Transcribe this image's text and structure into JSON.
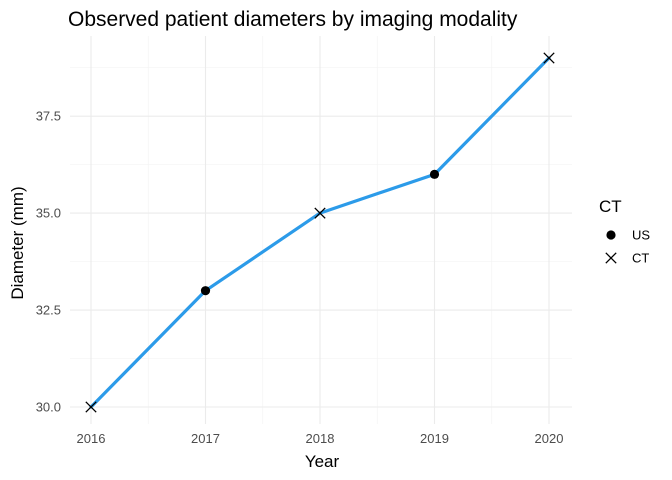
{
  "chart_data": {
    "type": "line",
    "title": "Observed patient diameters by imaging modality",
    "xlabel": "Year",
    "ylabel": "Diameter (mm)",
    "x": [
      2016,
      2017,
      2018,
      2019,
      2020
    ],
    "values": [
      30,
      33,
      35,
      36,
      39
    ],
    "modality": [
      "CT",
      "US",
      "CT",
      "US",
      "CT"
    ],
    "xlim": [
      2016,
      2020
    ],
    "ylim": [
      30,
      39
    ],
    "x_ticks": [
      "2016",
      "2017",
      "2018",
      "2019",
      "2020"
    ],
    "y_ticks": [
      "30.0",
      "32.5",
      "35.0",
      "37.5"
    ],
    "line_color": "#2c9be9",
    "grid": true,
    "legend": {
      "title": "CT",
      "position": "right",
      "entries": [
        {
          "label": "US",
          "shape": "circle"
        },
        {
          "label": "CT",
          "shape": "cross"
        }
      ]
    }
  }
}
